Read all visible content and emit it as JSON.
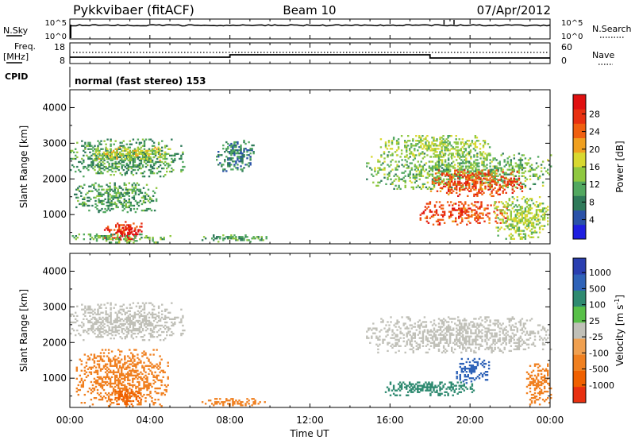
{
  "header": {
    "station": "Pykkvibaer (fitACF)",
    "beam": "Beam 10",
    "date": "07/Apr/2012"
  },
  "strips": {
    "nsky_label": "N.Sky",
    "nsky_ticks": [
      "10^5",
      "10^0"
    ],
    "nsearch_label": "N.Search",
    "nsearch_ticks": [
      "10^5",
      "10^0"
    ],
    "freq_label": "Freq.",
    "freq_unit": "[MHz]",
    "freq_ticks": [
      "18",
      "8"
    ],
    "nave_label": "Nave",
    "nave_ticks": [
      "60",
      "0"
    ],
    "cpid_label": "CPID",
    "cpid_value": "normal (fast stereo) 153"
  },
  "axes": {
    "ylabel": "Slant Range [km]",
    "yticks": [
      "4000",
      "3000",
      "2000",
      "1000"
    ],
    "xlabel": "Time UT",
    "xticks": [
      "00:00",
      "04:00",
      "08:00",
      "12:00",
      "16:00",
      "20:00",
      "00:00"
    ]
  },
  "power_scale": {
    "label": "Power [dB]",
    "ticks": [
      "28",
      "24",
      "20",
      "16",
      "12",
      "8",
      "4"
    ],
    "colors": [
      "#1f1fe0",
      "#2a52a8",
      "#2f7a5a",
      "#52a860",
      "#8fc840",
      "#d8d830",
      "#f0a020",
      "#f06010",
      "#e83010",
      "#e01010"
    ]
  },
  "velocity_scale": {
    "label": "Velocity [m s",
    "label_sup": "-1",
    "label_end": "]",
    "ticks": [
      "1000",
      "500",
      "100",
      "25",
      "-25",
      "-100",
      "-500",
      "-1000"
    ],
    "colors": [
      "#2a3fb0",
      "#2f63b8",
      "#2f8a70",
      "#58c048",
      "#c0c0b8",
      "#f0a050",
      "#f08020",
      "#f06000",
      "#e83010"
    ]
  },
  "chart_data": {
    "type": "heatmap",
    "x_range_hours": [
      0,
      24
    ],
    "y_range_km": [
      180,
      4500
    ],
    "nsky": {
      "baseline": "10^5",
      "spikes_hours": [
        0.05,
        18.7,
        19.2
      ]
    },
    "frequency_mhz": [
      {
        "from": 0,
        "to": 8,
        "value": 10.5
      },
      {
        "from": 8,
        "to": 18,
        "value": 12
      },
      {
        "from": 18,
        "to": 24,
        "value": 10
      }
    ],
    "power_regions": [
      {
        "t0": 0.0,
        "t1": 5.7,
        "r0": 2050,
        "r1": 3100,
        "db": 10
      },
      {
        "t0": 1.1,
        "t1": 5.0,
        "r0": 2500,
        "r1": 2900,
        "db": 16
      },
      {
        "t0": 0.2,
        "t1": 4.3,
        "r0": 1050,
        "r1": 1900,
        "db": 10
      },
      {
        "t0": 1.7,
        "t1": 3.6,
        "r0": 280,
        "r1": 800,
        "db": 25
      },
      {
        "t0": 2.3,
        "t1": 3.4,
        "r0": 250,
        "r1": 650,
        "db": 30
      },
      {
        "t0": 0.1,
        "t1": 5.0,
        "r0": 200,
        "r1": 450,
        "db": 12
      },
      {
        "t0": 6.5,
        "t1": 9.8,
        "r0": 220,
        "r1": 430,
        "db": 10
      },
      {
        "t0": 7.3,
        "t1": 9.2,
        "r0": 2200,
        "r1": 3100,
        "db": 8
      },
      {
        "t0": 14.8,
        "t1": 24.0,
        "r0": 1700,
        "r1": 2700,
        "db": 12
      },
      {
        "t0": 15.5,
        "t1": 21.0,
        "r0": 2600,
        "r1": 3200,
        "db": 14
      },
      {
        "t0": 18.0,
        "t1": 22.6,
        "r0": 1500,
        "r1": 2250,
        "db": 24
      },
      {
        "t0": 17.4,
        "t1": 21.8,
        "r0": 700,
        "r1": 1350,
        "db": 24
      },
      {
        "t0": 21.2,
        "t1": 23.9,
        "r0": 300,
        "r1": 1500,
        "db": 14
      }
    ],
    "velocity_regions": [
      {
        "t0": 0.0,
        "t1": 5.7,
        "r0": 2050,
        "r1": 3100,
        "v": 0
      },
      {
        "t0": 0.3,
        "t1": 4.9,
        "r0": 200,
        "r1": 1800,
        "v": -300
      },
      {
        "t0": 2.0,
        "t1": 3.6,
        "r0": 250,
        "r1": 700,
        "v": -600
      },
      {
        "t0": 6.5,
        "t1": 9.8,
        "r0": 220,
        "r1": 430,
        "v": -200
      },
      {
        "t0": 14.8,
        "t1": 24.0,
        "r0": 1700,
        "r1": 2700,
        "v": 0
      },
      {
        "t0": 19.3,
        "t1": 20.9,
        "r0": 800,
        "r1": 1600,
        "v": 800
      },
      {
        "t0": 15.5,
        "t1": 20.2,
        "r0": 500,
        "r1": 900,
        "v": 150
      },
      {
        "t0": 22.8,
        "t1": 24.0,
        "r0": 200,
        "r1": 1400,
        "v": -300
      }
    ]
  }
}
